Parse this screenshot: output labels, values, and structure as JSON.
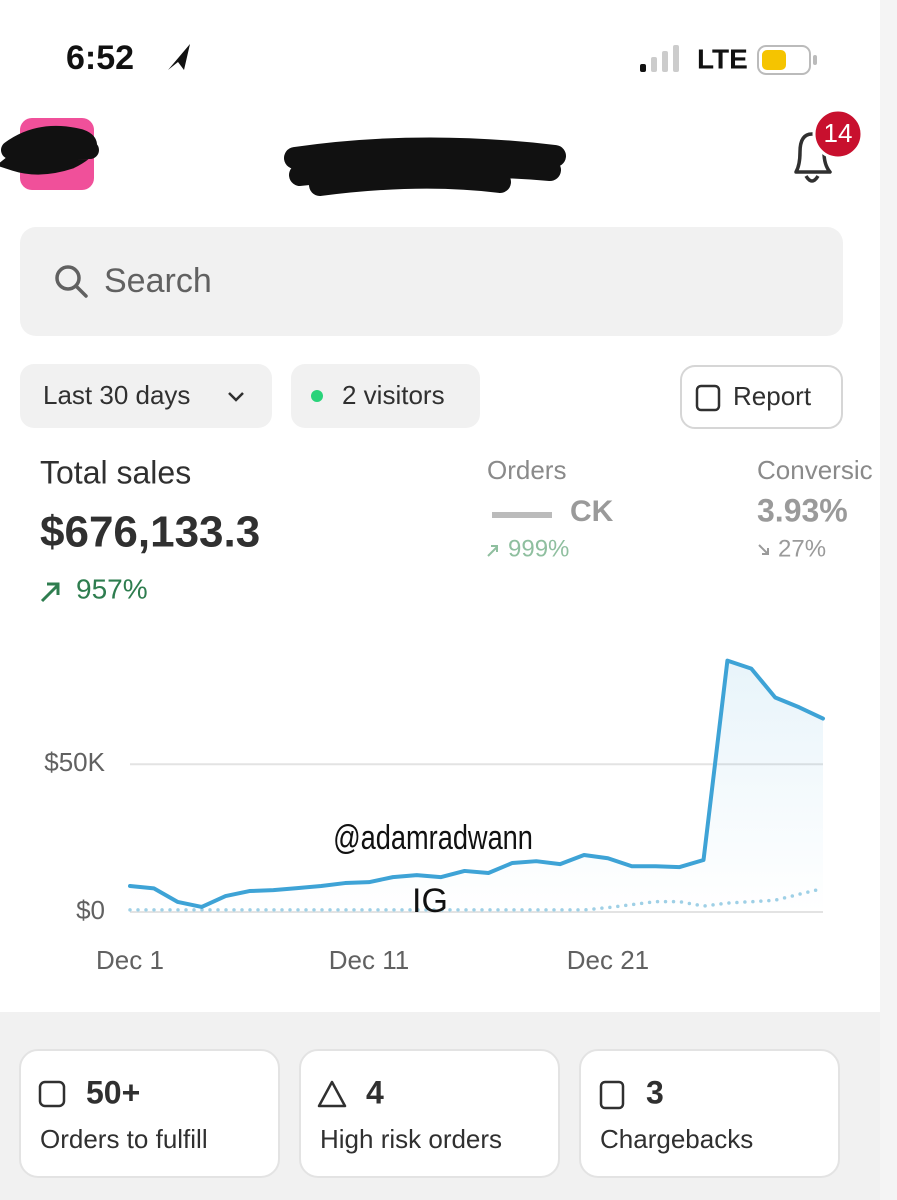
{
  "status_bar": {
    "time": "6:52",
    "network": "LTE"
  },
  "header": {
    "notification_count": 14
  },
  "search": {
    "placeholder": "Search"
  },
  "filters": {
    "date_range": "Last 30 days",
    "visitors": "2 visitors",
    "report": "Report"
  },
  "metrics": [
    {
      "label": "Total sales",
      "value": "$676,133.3",
      "change": "957%"
    },
    {
      "label": "Orders",
      "value": "CK",
      "change": "999%"
    },
    {
      "label": "Conversic",
      "value": "3.93%",
      "change": "27%"
    }
  ],
  "chart_data": {
    "type": "line",
    "categories": [
      "Dec 1",
      null,
      null,
      null,
      null,
      null,
      null,
      null,
      null,
      null,
      "Dec 11",
      null,
      null,
      null,
      null,
      null,
      null,
      null,
      null,
      null,
      "Dec 21",
      null,
      null,
      null,
      null,
      null,
      null,
      null,
      null,
      null
    ],
    "series": [
      {
        "color": "#3ea3d6",
        "values": [
          8800,
          8000,
          3400,
          1700,
          5400,
          7100,
          7400,
          8100,
          8800,
          9800,
          10100,
          11800,
          12500,
          11800,
          13900,
          13200,
          16600,
          17200,
          16200,
          19300,
          18200,
          15500,
          15500,
          15200,
          17600,
          85100,
          82400,
          72600,
          69300,
          65500
        ]
      },
      {
        "color": "#9fd0e6",
        "values": [
          700,
          700,
          700,
          700,
          700,
          700,
          700,
          700,
          700,
          700,
          700,
          700,
          700,
          700,
          700,
          700,
          700,
          700,
          700,
          700,
          1500,
          2500,
          3500,
          3500,
          2000,
          3000,
          3500,
          4000,
          6000,
          8000
        ]
      }
    ],
    "ylim": [
      0,
      87000
    ],
    "yticks": [
      {
        "value": 0,
        "label": "$0"
      },
      {
        "value": 50000,
        "label": "$50K"
      }
    ],
    "grid": true
  },
  "watermark": [
    "@adamradwann",
    "IG"
  ],
  "cards": [
    {
      "value": "50+",
      "label": "Orders to fulfill"
    },
    {
      "value": 4,
      "label": "High risk orders"
    },
    {
      "value": 3,
      "label": "Chargebacks"
    }
  ]
}
